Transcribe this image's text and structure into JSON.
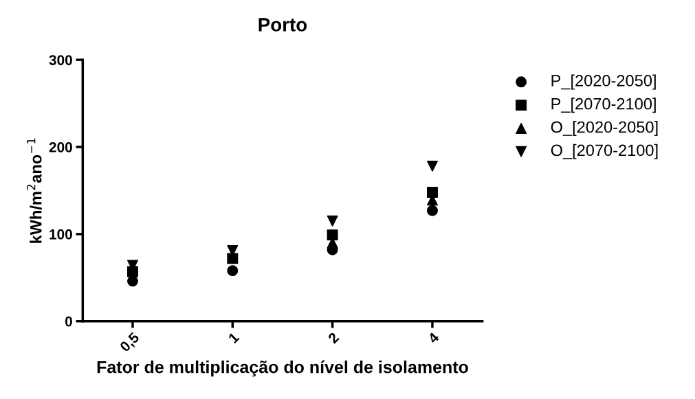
{
  "chart_data": {
    "type": "scatter",
    "title": "Porto",
    "xlabel": "Fator de multiplicação do nível de isolamento",
    "ylabel": "kWh/m$^{2}$ano$^{−1}$",
    "categories": [
      "0,5",
      "1",
      "2",
      "4"
    ],
    "series": [
      {
        "name": "P_[2020-2050]",
        "color": "#000000",
        "marker": "circle",
        "values": [
          46,
          58,
          82,
          127
        ]
      },
      {
        "name": "P_[2070-2100]",
        "color": "#000000",
        "marker": "square",
        "values": [
          57,
          72,
          99,
          148
        ]
      },
      {
        "name": "O_[2020-2050]",
        "color": "#000000",
        "marker": "triangle",
        "values": [
          null,
          null,
          90,
          139
        ]
      },
      {
        "name": "O_[2070-2100]",
        "color": "#000000",
        "marker": "triangle-down",
        "values": [
          64,
          81,
          115,
          178
        ]
      }
    ],
    "ylim": [
      0,
      300
    ],
    "yticks": [
      0,
      100,
      200,
      300
    ],
    "grid": false,
    "legend": "right"
  }
}
